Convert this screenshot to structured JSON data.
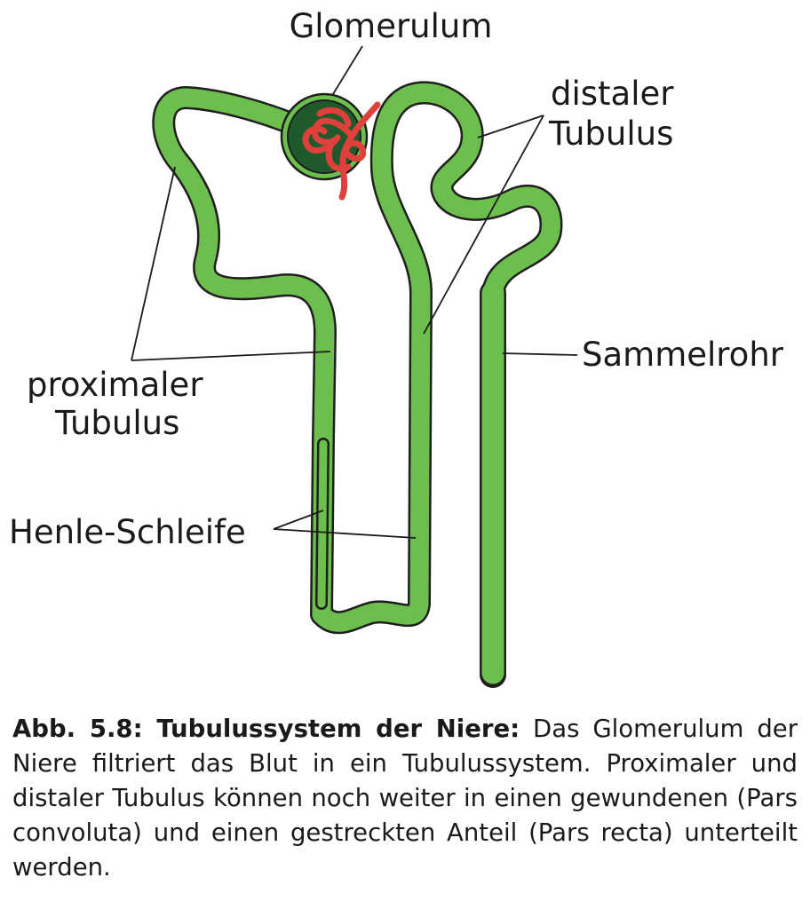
{
  "labels": {
    "glomerulum": "Glomerulum",
    "distal_line1": "distaler",
    "distal_line2": "Tubulus",
    "proximal_line1": "proximaler",
    "proximal_line2": "Tubulus",
    "sammelrohr": "Sammelrohr",
    "henle": "Henle-Schleife"
  },
  "caption": {
    "title": "Abb. 5.8: Tubulussystem der Niere:",
    "text": "Das Glomerulum der Niere filtriert das Blut in ein Tubulussystem. Proximaler und distaler Tubulus können noch weiter in einen gewundenen (Pars convoluta) und einen gestreckten Anteil (Pars recta) unterteilt werden."
  },
  "colors": {
    "tubule_fill": "#6cbf4c",
    "tubule_outline": "#1f1f1f",
    "glomerulus_capsule": "#1e5a2c",
    "capillary": "#e0403b"
  }
}
